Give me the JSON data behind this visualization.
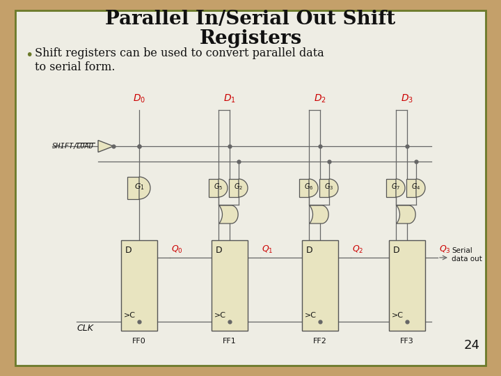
{
  "title_line1": "Parallel In/Serial Out Shift",
  "title_line2": "Registers",
  "bullet_text": "Shift registers can be used to convert parallel data\nto serial form.",
  "bg_outer": "#c4a06a",
  "bg_slide": "#eeede4",
  "title_color": "#111111",
  "bullet_color": "#111111",
  "gate_fill": "#e8e4c0",
  "gate_edge": "#555555",
  "ff_fill": "#e8e4c0",
  "ff_edge": "#555555",
  "wire_color": "#666666",
  "label_color": "#cc0000",
  "text_color": "#111111",
  "slide_number": "24",
  "ff_labels": [
    "FF0",
    "FF1",
    "FF2",
    "FF3"
  ],
  "shift_load_label": "SHIFT/LOAD",
  "clk_label": "CLK",
  "serial_out_label": "Serial\ndata out",
  "border_color": "#6b7a2a"
}
